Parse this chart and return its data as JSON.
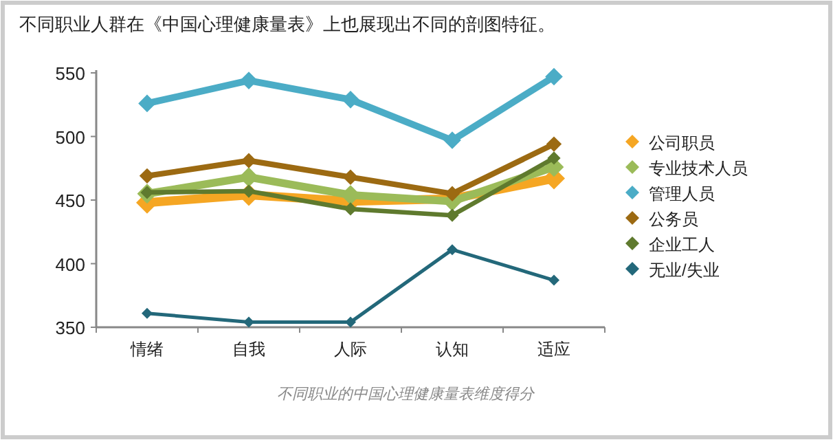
{
  "chart_data": {
    "type": "line",
    "title": "不同职业人群在《中国心理健康量表》上也展现出不同的剖图特征。",
    "annotations": [
      "不同职业的中国心理健康量表维度得分"
    ],
    "categories": [
      "情绪",
      "自我",
      "人际",
      "认知",
      "适应"
    ],
    "series": [
      {
        "name": "公司职员",
        "color": "#f5a623",
        "values": [
          448,
          454,
          449,
          451,
          467
        ]
      },
      {
        "name": "专业技术人员",
        "color": "#9bbb59",
        "values": [
          455,
          468,
          454,
          449,
          476
        ]
      },
      {
        "name": "管理人员",
        "color": "#4bacc6",
        "values": [
          526,
          544,
          529,
          497,
          547
        ]
      },
      {
        "name": "公务员",
        "color": "#9c6a12",
        "values": [
          469,
          481,
          468,
          455,
          494
        ]
      },
      {
        "name": "企业工人",
        "color": "#5f7a2e",
        "values": [
          456,
          457,
          443,
          438,
          483
        ]
      },
      {
        "name": "无业/失业",
        "color": "#23687a",
        "values": [
          361,
          354,
          354,
          411,
          387
        ]
      }
    ],
    "ylim": [
      350,
      550
    ],
    "yticks": [
      350,
      400,
      450,
      500,
      550
    ],
    "grid": false,
    "legend": "right",
    "marker": "diamond",
    "line_style": "solid"
  }
}
